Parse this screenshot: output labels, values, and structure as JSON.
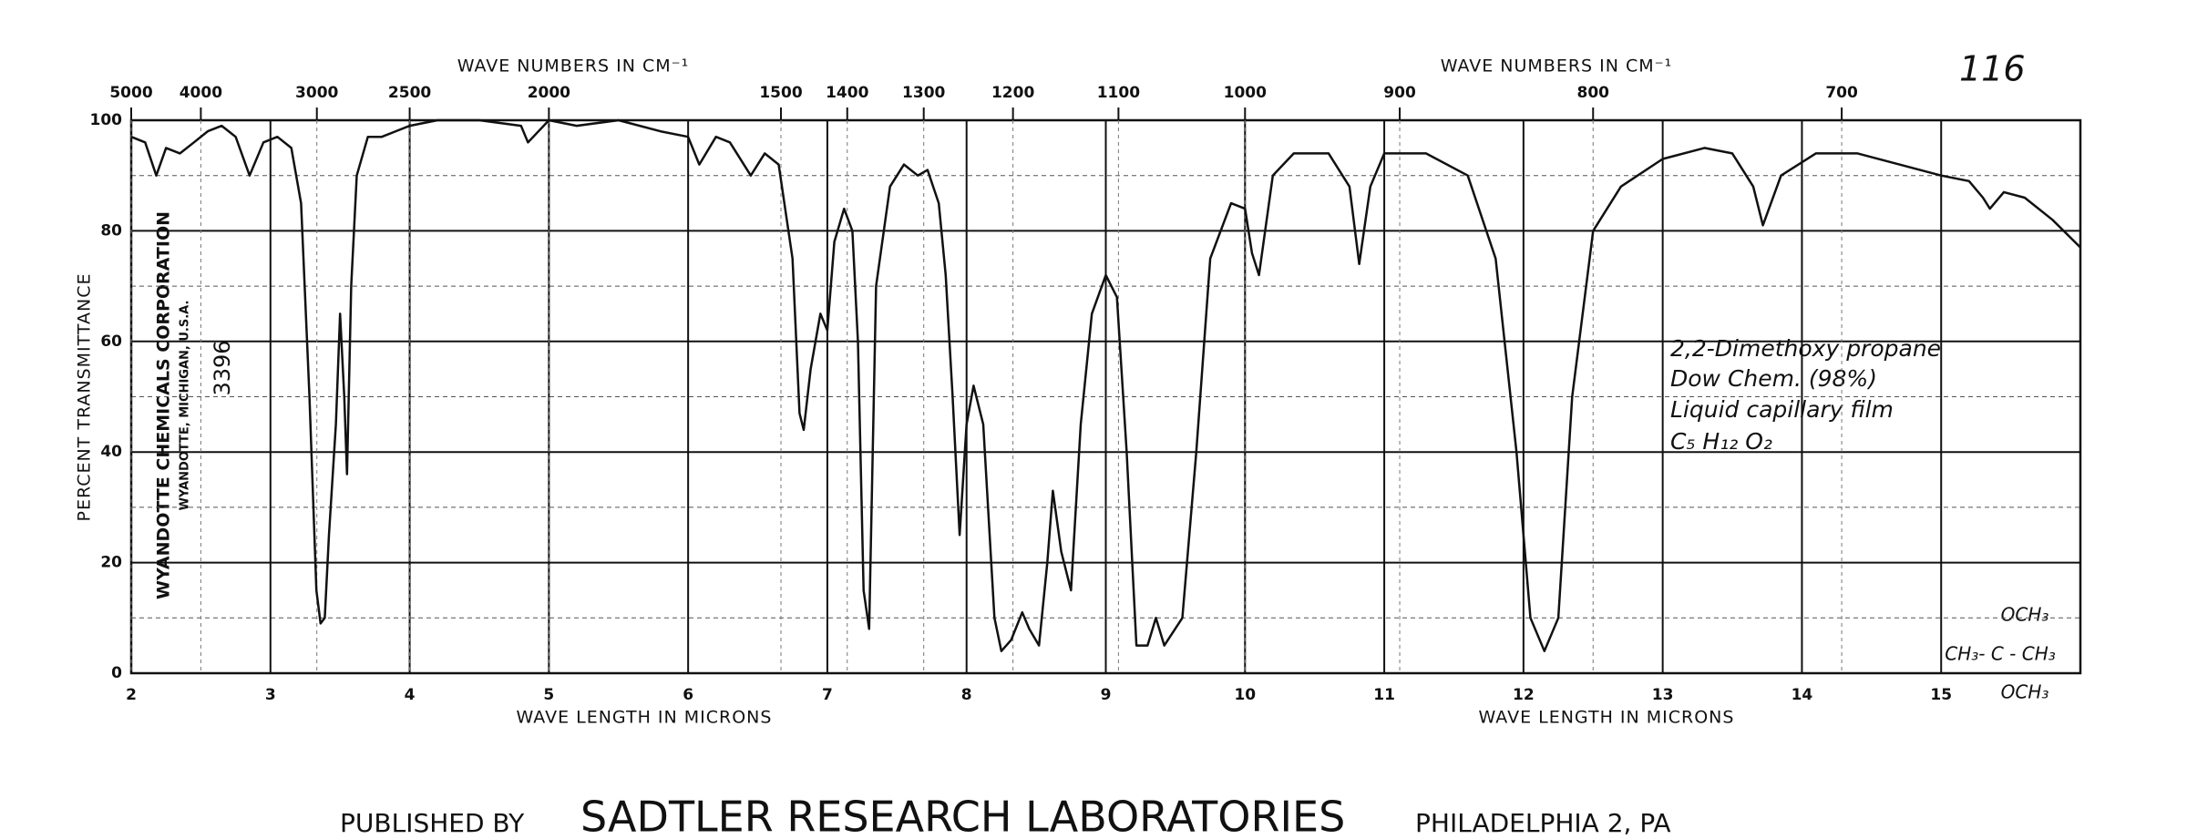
{
  "chart_data": {
    "type": "line",
    "page_number": "116",
    "x_labels": [
      "WAVE LENGTH IN MICRONS",
      "WAVE LENGTH IN MICRONS"
    ],
    "x2_labels": [
      "WAVE NUMBERS IN CM⁻¹",
      "WAVE NUMBERS IN CM⁻¹"
    ],
    "y_label": "PERCENT TRANSMITTANCE",
    "annotations": {
      "corporation": "WYANDOTTE CHEMICALS CORPORATION",
      "location": "WYANDOTTE, MICHIGAN, U.S.A.",
      "catalog": "3396",
      "sample": [
        "2,2-Dimethoxy propane",
        "Dow Chem. (98%)",
        "Liquid capillary film",
        "C₅ H₁₂ O₂"
      ],
      "structure": [
        "OCH₃",
        "CH₃- C - CH₃",
        "OCH₃"
      ]
    },
    "xlim": [
      2,
      16
    ],
    "xticks": [
      2,
      3,
      4,
      5,
      6,
      7,
      8,
      9,
      10,
      11,
      12,
      13,
      14,
      15
    ],
    "x2ticks": [
      5000,
      4000,
      3000,
      2500,
      2000,
      1500,
      1400,
      1300,
      1200,
      1100,
      1000,
      900,
      800,
      700
    ],
    "ylim": [
      0,
      100
    ],
    "yticks": [
      0,
      20,
      40,
      60,
      80,
      100
    ],
    "yminorticks": [
      10,
      30,
      50,
      70,
      90
    ],
    "grid": true,
    "color": "#111111",
    "x": [
      2.0,
      2.1,
      2.18,
      2.25,
      2.35,
      2.45,
      2.55,
      2.65,
      2.75,
      2.85,
      2.95,
      3.05,
      3.15,
      3.22,
      3.28,
      3.33,
      3.36,
      3.39,
      3.42,
      3.47,
      3.5,
      3.53,
      3.55,
      3.58,
      3.62,
      3.7,
      3.8,
      3.9,
      4.0,
      4.2,
      4.5,
      4.8,
      4.85,
      5.0,
      5.2,
      5.5,
      5.8,
      6.0,
      6.08,
      6.2,
      6.3,
      6.45,
      6.55,
      6.65,
      6.75,
      6.8,
      6.83,
      6.88,
      6.95,
      7.0,
      7.05,
      7.12,
      7.18,
      7.22,
      7.26,
      7.3,
      7.35,
      7.45,
      7.55,
      7.65,
      7.72,
      7.8,
      7.85,
      7.9,
      7.95,
      8.0,
      8.05,
      8.12,
      8.2,
      8.25,
      8.32,
      8.4,
      8.45,
      8.52,
      8.58,
      8.62,
      8.68,
      8.75,
      8.82,
      8.9,
      9.0,
      9.08,
      9.15,
      9.22,
      9.3,
      9.36,
      9.42,
      9.55,
      9.65,
      9.75,
      9.9,
      10.0,
      10.05,
      10.1,
      10.2,
      10.35,
      10.6,
      10.75,
      10.82,
      10.9,
      11.0,
      11.3,
      11.6,
      11.8,
      11.95,
      12.05,
      12.15,
      12.25,
      12.35,
      12.5,
      12.7,
      13.0,
      13.3,
      13.5,
      13.65,
      13.72,
      13.85,
      14.1,
      14.4,
      14.7,
      15.0,
      15.2,
      15.3,
      15.35,
      15.45,
      15.6,
      15.8,
      16.0
    ],
    "values": [
      97,
      96,
      90,
      95,
      94,
      96,
      98,
      99,
      97,
      90,
      96,
      97,
      95,
      85,
      50,
      15,
      9,
      10,
      25,
      45,
      65,
      50,
      36,
      70,
      90,
      97,
      97,
      98,
      99,
      100,
      100,
      99,
      96,
      100,
      99,
      100,
      98,
      97,
      92,
      97,
      96,
      90,
      94,
      92,
      75,
      47,
      44,
      55,
      65,
      62,
      78,
      84,
      80,
      60,
      15,
      8,
      70,
      88,
      92,
      90,
      91,
      85,
      72,
      50,
      25,
      45,
      52,
      45,
      10,
      4,
      6,
      11,
      8,
      5,
      20,
      33,
      22,
      15,
      45,
      65,
      72,
      68,
      40,
      5,
      5,
      10,
      5,
      10,
      40,
      75,
      85,
      84,
      76,
      72,
      90,
      94,
      94,
      88,
      74,
      88,
      94,
      94,
      90,
      75,
      40,
      10,
      4,
      10,
      50,
      80,
      88,
      93,
      95,
      94,
      88,
      81,
      90,
      94,
      94,
      92,
      90,
      89,
      86,
      84,
      87,
      86,
      82,
      77
    ]
  },
  "footer": {
    "prefix": "PUBLISHED BY",
    "name": "SADTLER RESEARCH LABORATORIES",
    "city": "PHILADELPHIA 2, PA"
  }
}
